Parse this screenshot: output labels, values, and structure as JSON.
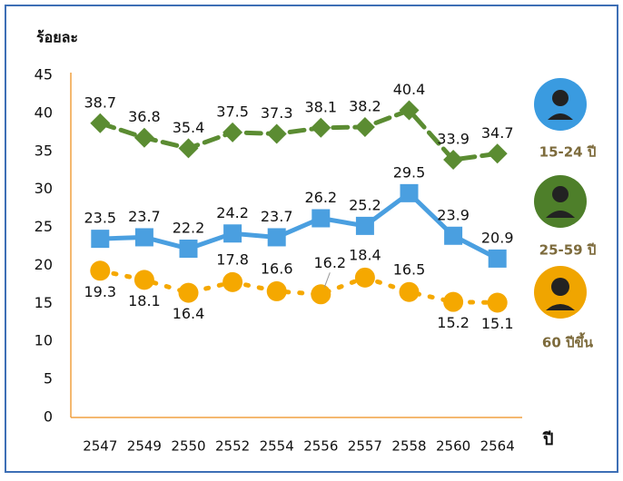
{
  "chart_data": {
    "type": "line",
    "y_label": "ร้อยละ",
    "x_label": "ปี",
    "categories": [
      "2547",
      "2549",
      "2550",
      "2552",
      "2554",
      "2556",
      "2557",
      "2558",
      "2560",
      "2564"
    ],
    "series": [
      {
        "name": "15-24 ปี",
        "color": "#5b8c32",
        "line_style": "dashed",
        "marker": "diamond",
        "values": [
          38.7,
          36.8,
          35.4,
          37.5,
          37.3,
          38.1,
          38.2,
          40.4,
          33.9,
          34.7
        ]
      },
      {
        "name": "25-59 ปี",
        "color": "#4a9fe0",
        "line_style": "solid",
        "marker": "square",
        "values": [
          23.5,
          23.7,
          22.2,
          24.2,
          23.7,
          26.2,
          25.2,
          29.5,
          23.9,
          20.9
        ]
      },
      {
        "name": "60 ปีขึ้น",
        "color": "#f5a800",
        "line_style": "dotted",
        "marker": "circle",
        "values": [
          19.3,
          18.1,
          16.4,
          17.8,
          16.6,
          16.2,
          18.4,
          16.5,
          15.2,
          15.1
        ]
      }
    ],
    "ylim": [
      0,
      45
    ],
    "yticks": [
      0,
      5,
      10,
      15,
      20,
      25,
      30,
      35,
      40,
      45
    ],
    "grid": false
  }
}
